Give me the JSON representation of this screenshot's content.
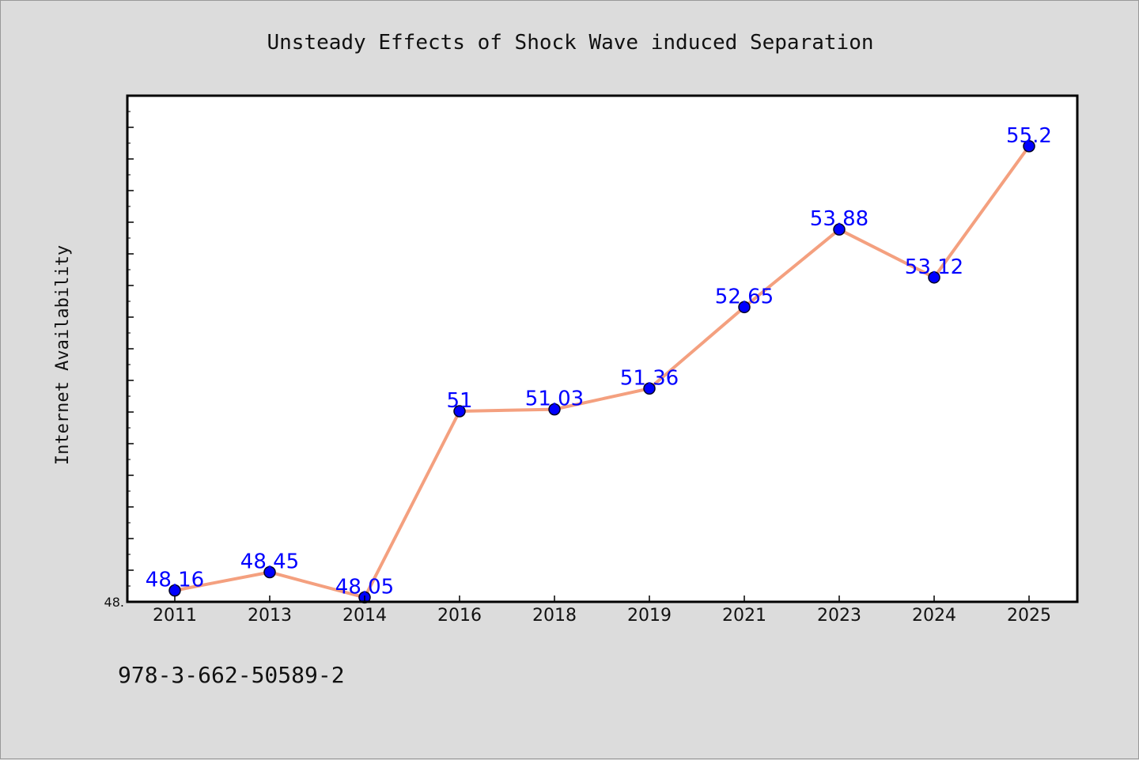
{
  "chart_data": {
    "type": "line",
    "title": "Unsteady Effects of Shock Wave induced Separation",
    "ylabel": "Internet Availability",
    "xlabel": "",
    "categories": [
      "2011",
      "2013",
      "2014",
      "2016",
      "2018",
      "2019",
      "2021",
      "2023",
      "2024",
      "2025"
    ],
    "values": [
      48.16,
      48.45,
      48.05,
      51,
      51.03,
      51.36,
      52.65,
      53.88,
      53.12,
      55.2
    ],
    "data_labels": [
      "48.16",
      "48.45",
      "48.05",
      "51",
      "51.03",
      "51.36",
      "52.65",
      "53.88",
      "53.12",
      "55.2"
    ],
    "ytick_labels": [
      "48."
    ],
    "ylim": [
      47.98,
      56.0
    ],
    "grid": false,
    "line_color": "#f4a07f",
    "marker_color": "#0000ff",
    "label_color": "#0000ff"
  },
  "footer": {
    "isbn": "978-3-662-50589-2"
  }
}
